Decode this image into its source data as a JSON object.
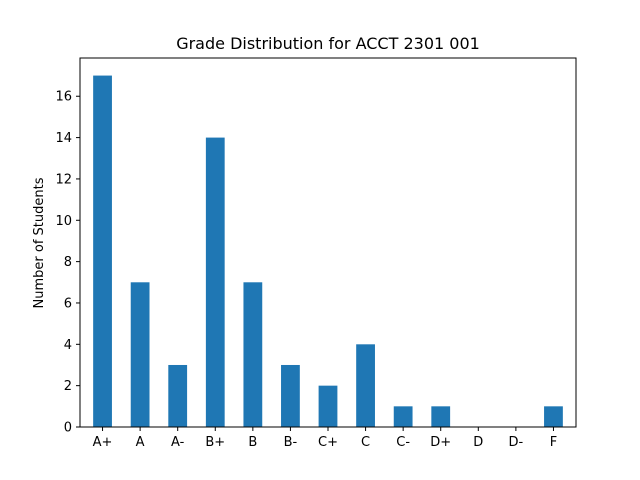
{
  "chart_data": {
    "type": "bar",
    "title": "Grade Distribution for ACCT 2301 001",
    "xlabel": "",
    "ylabel": "Number of Students",
    "categories": [
      "A+",
      "A",
      "A-",
      "B+",
      "B",
      "B-",
      "C+",
      "C",
      "C-",
      "D+",
      "D",
      "D-",
      "F"
    ],
    "values": [
      17,
      7,
      3,
      14,
      7,
      3,
      2,
      4,
      1,
      1,
      0,
      0,
      1
    ],
    "ylim": [
      0,
      17.85
    ],
    "yticks": [
      0,
      2,
      4,
      6,
      8,
      10,
      12,
      14,
      16
    ],
    "grid": false,
    "legend": "none",
    "bar_color": "#1f77b4"
  }
}
